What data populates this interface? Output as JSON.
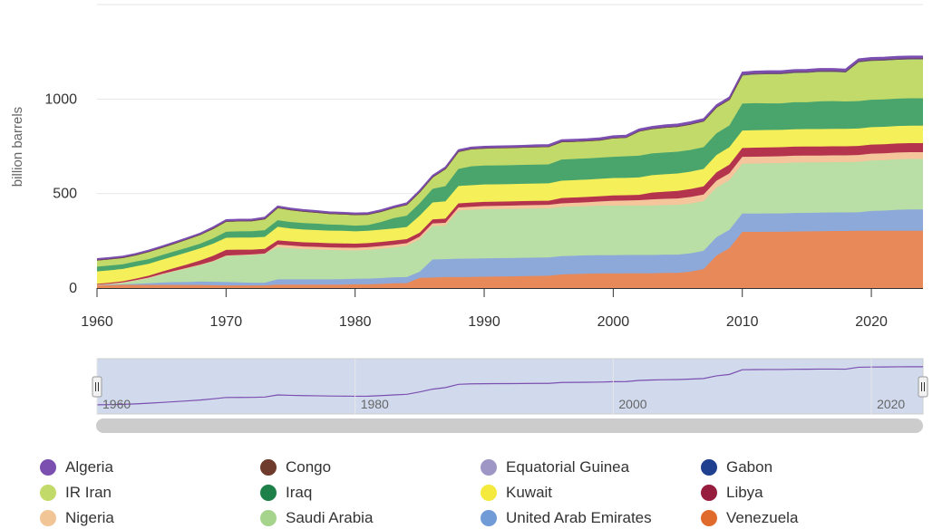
{
  "chart_data": {
    "type": "area",
    "stacked": true,
    "title": "",
    "ylabel": "billion barrels",
    "xlabel": "",
    "ylim": [
      0,
      1500
    ],
    "xlim": [
      1960,
      2024
    ],
    "y_ticks": [
      0,
      500,
      1000
    ],
    "x_ticks": [
      1960,
      1970,
      1980,
      1990,
      2000,
      2010,
      2020
    ],
    "legend_position": "bottom",
    "navigator": {
      "tick_labels": [
        "1960",
        "1980",
        "2000",
        "2020"
      ],
      "selected_range": [
        1960,
        2024
      ]
    },
    "x": [
      1960,
      1961,
      1962,
      1963,
      1964,
      1965,
      1966,
      1967,
      1968,
      1969,
      1970,
      1971,
      1972,
      1973,
      1974,
      1975,
      1976,
      1977,
      1978,
      1979,
      1980,
      1981,
      1982,
      1983,
      1984,
      1985,
      1986,
      1987,
      1988,
      1989,
      1990,
      1991,
      1992,
      1993,
      1994,
      1995,
      1996,
      1997,
      1998,
      1999,
      2000,
      2001,
      2002,
      2003,
      2004,
      2005,
      2006,
      2007,
      2008,
      2009,
      2010,
      2011,
      2012,
      2013,
      2014,
      2015,
      2016,
      2017,
      2018,
      2019,
      2020,
      2021,
      2022,
      2023,
      2024
    ],
    "series": [
      {
        "name": "Venezuela",
        "color": "#e8895a",
        "values": [
          18,
          18,
          18,
          17,
          17,
          17,
          17,
          16,
          16,
          15,
          14,
          14,
          14,
          14,
          18,
          18,
          18,
          18,
          18,
          18,
          20,
          20,
          22,
          25,
          26,
          54,
          56,
          58,
          58,
          59,
          60,
          61,
          62,
          63,
          64,
          65,
          72,
          74,
          76,
          77,
          77,
          78,
          78,
          78,
          80,
          80,
          87,
          100,
          172,
          211,
          297,
          297,
          298,
          298,
          299,
          300,
          301,
          302,
          302,
          303,
          303,
          303,
          303,
          303,
          303
        ]
      },
      {
        "name": "United Arab Emirates",
        "color": "#8ca9d9",
        "values": [
          0,
          0,
          2,
          5,
          8,
          12,
          14,
          16,
          18,
          18,
          18,
          16,
          14,
          14,
          28,
          28,
          28,
          28,
          28,
          29,
          29,
          30,
          31,
          32,
          32,
          32,
          95,
          95,
          97,
          97,
          97,
          97,
          97,
          97,
          97,
          97,
          97,
          97,
          97,
          97,
          97,
          97,
          97,
          97,
          97,
          97,
          97,
          97,
          97,
          97,
          97,
          97,
          97,
          97,
          98,
          98,
          98,
          98,
          98,
          98,
          105,
          107,
          111,
          113,
          113
        ]
      },
      {
        "name": "Saudi Arabia",
        "color": "#b9dea6",
        "values": [
          0,
          5,
          10,
          20,
          30,
          45,
          60,
          75,
          90,
          110,
          140,
          145,
          150,
          155,
          170,
          165,
          160,
          158,
          155,
          153,
          150,
          152,
          155,
          158,
          165,
          172,
          177,
          177,
          255,
          258,
          260,
          260,
          260,
          260,
          260,
          260,
          260,
          261,
          261,
          262,
          262,
          262,
          262,
          262,
          262,
          263,
          263,
          263,
          263,
          263,
          264,
          265,
          265,
          266,
          267,
          267,
          266,
          266,
          266,
          267,
          267,
          267,
          267,
          267,
          267
        ]
      },
      {
        "name": "Nigeria",
        "color": "#f5c69c",
        "values": [
          0,
          0,
          0,
          0,
          0,
          0,
          0,
          0,
          0,
          0,
          0,
          0,
          0,
          0,
          14,
          14,
          14,
          14,
          14,
          14,
          14,
          14,
          14,
          14,
          14,
          14,
          14,
          15,
          16,
          16,
          17,
          17,
          17,
          18,
          18,
          18,
          19,
          19,
          20,
          22,
          26,
          26,
          28,
          32,
          33,
          34,
          35,
          35,
          36,
          36,
          36,
          36,
          36,
          36,
          36,
          36,
          36,
          36,
          36,
          36,
          36,
          36,
          36,
          36,
          36
        ]
      },
      {
        "name": "Libya",
        "color": "#b4344e",
        "values": [
          4,
          5,
          6,
          8,
          10,
          12,
          15,
          18,
          22,
          28,
          30,
          28,
          25,
          24,
          22,
          22,
          22,
          22,
          22,
          22,
          22,
          22,
          22,
          22,
          22,
          21,
          21,
          22,
          22,
          22,
          22,
          22,
          22,
          22,
          22,
          22,
          28,
          28,
          28,
          28,
          28,
          28,
          28,
          36,
          38,
          40,
          42,
          43,
          44,
          46,
          47,
          48,
          48,
          48,
          48,
          48,
          48,
          48,
          48,
          48,
          48,
          48,
          48,
          48,
          48
        ]
      },
      {
        "name": "Kuwait",
        "color": "#f5ef5a",
        "values": [
          66,
          66,
          65,
          65,
          63,
          63,
          63,
          64,
          64,
          64,
          64,
          64,
          64,
          64,
          72,
          68,
          68,
          67,
          67,
          67,
          65,
          65,
          65,
          64,
          64,
          90,
          90,
          92,
          92,
          92,
          92,
          92,
          92,
          92,
          92,
          92,
          92,
          92,
          92,
          92,
          92,
          92,
          92,
          92,
          92,
          92,
          92,
          92,
          92,
          92,
          92,
          92,
          92,
          92,
          92,
          92,
          92,
          92,
          92,
          92,
          92,
          92,
          92,
          92,
          92
        ]
      },
      {
        "name": "Iraq",
        "color": "#4aa56d",
        "values": [
          25,
          25,
          25,
          25,
          25,
          25,
          25,
          25,
          25,
          28,
          32,
          33,
          34,
          35,
          35,
          34,
          34,
          34,
          32,
          31,
          30,
          30,
          40,
          55,
          60,
          65,
          72,
          80,
          90,
          100,
          100,
          100,
          100,
          100,
          100,
          100,
          112,
          112,
          112,
          112,
          112,
          114,
          115,
          115,
          115,
          115,
          115,
          115,
          115,
          115,
          143,
          143,
          141,
          140,
          143,
          142,
          147,
          147,
          145,
          145,
          145,
          145,
          145,
          145,
          145
        ]
      },
      {
        "name": "IR Iran",
        "color": "#c2da6a",
        "values": [
          35,
          35,
          35,
          35,
          40,
          40,
          42,
          45,
          48,
          52,
          55,
          55,
          55,
          60,
          66,
          65,
          62,
          60,
          58,
          58,
          58,
          57,
          56,
          55,
          58,
          60,
          62,
          92,
          92,
          92,
          92,
          93,
          93,
          93,
          94,
          94,
          94,
          93,
          93,
          93,
          100,
          100,
          130,
          131,
          133,
          134,
          136,
          138,
          138,
          138,
          151,
          154,
          157,
          157,
          157,
          158,
          158,
          157,
          156,
          208,
          208,
          208,
          208,
          208,
          208
        ]
      },
      {
        "name": "Gabon",
        "color": "#1f3f8f",
        "values": [
          0.5,
          0.5,
          0.5,
          0.5,
          0.5,
          0.5,
          0.5,
          0.5,
          0.5,
          0.5,
          0.5,
          0.5,
          0.5,
          0.5,
          0.5,
          0.5,
          0.5,
          0.5,
          0.5,
          0.5,
          0.5,
          0.5,
          0.5,
          0.5,
          0.5,
          0.5,
          0.5,
          0.5,
          0.5,
          0.5,
          0.5,
          0.5,
          0.5,
          0.5,
          0.5,
          0.5,
          0.5,
          0.5,
          0.5,
          0.5,
          0.5,
          0.5,
          0.5,
          0.5,
          0.5,
          0.5,
          0.5,
          0.5,
          0.5,
          0.5,
          0.5,
          0.5,
          0.5,
          0.5,
          0.5,
          0.5,
          0.5,
          0.5,
          0.5,
          0.5,
          0.5,
          0.5,
          0.5,
          0.5,
          0.5
        ]
      },
      {
        "name": "Equatorial Guinea",
        "color": "#9e96c4",
        "values": [
          0,
          0,
          0,
          0,
          0,
          0,
          0,
          0,
          0,
          0,
          0,
          0,
          0,
          0,
          0,
          0,
          0,
          0,
          0,
          0,
          0,
          0,
          0,
          0,
          0,
          0,
          0,
          0,
          0,
          0,
          0,
          0,
          0,
          0,
          0,
          0,
          0,
          0,
          0,
          0,
          0,
          0,
          0,
          0,
          0,
          0,
          0,
          0,
          0,
          0,
          1,
          1,
          1,
          1,
          1,
          1,
          1,
          1,
          1,
          1,
          1,
          1,
          1,
          1,
          1
        ]
      },
      {
        "name": "Congo",
        "color": "#6e3b2c",
        "values": [
          0,
          0,
          0,
          0,
          0,
          0,
          0,
          0,
          0,
          0,
          0,
          0,
          0,
          0,
          0,
          0,
          0,
          0,
          0,
          0,
          0,
          0,
          0,
          0,
          0,
          0,
          0,
          0,
          0,
          0,
          0,
          0,
          0,
          0,
          0,
          0,
          0,
          0,
          0,
          0,
          0,
          0,
          0,
          0,
          0,
          0,
          0,
          0,
          0,
          0,
          1.5,
          1.5,
          1.5,
          1.5,
          1.5,
          1.5,
          1.5,
          1.5,
          1.5,
          1.5,
          1.5,
          1.5,
          1.5,
          1.5,
          1.5
        ]
      },
      {
        "name": "Algeria",
        "color": "#7b4fb0",
        "values": [
          7,
          7,
          7,
          7,
          7,
          7,
          7,
          7,
          7,
          8,
          8,
          8,
          8,
          8,
          8,
          8,
          8,
          8,
          8,
          8,
          8,
          8,
          8,
          8,
          9,
          9,
          9,
          9,
          9,
          9,
          9,
          9,
          9,
          9,
          10,
          10,
          10,
          10,
          10,
          11,
          11,
          11,
          11,
          11,
          12,
          12,
          12,
          12,
          12,
          12,
          12,
          12,
          12,
          12,
          12,
          12,
          12,
          12,
          12,
          12,
          12,
          12,
          12,
          12,
          12
        ]
      }
    ],
    "legend": [
      {
        "name": "Algeria",
        "color": "#7b4fb0"
      },
      {
        "name": "Congo",
        "color": "#6e3b2c"
      },
      {
        "name": "Equatorial Guinea",
        "color": "#9e96c4"
      },
      {
        "name": "Gabon",
        "color": "#1f3f8f"
      },
      {
        "name": "IR Iran",
        "color": "#c2da6a"
      },
      {
        "name": "Iraq",
        "color": "#1c8048"
      },
      {
        "name": "Kuwait",
        "color": "#f3ea3d"
      },
      {
        "name": "Libya",
        "color": "#971d3e"
      },
      {
        "name": "Nigeria",
        "color": "#f2c596"
      },
      {
        "name": "Saudi Arabia",
        "color": "#a7d48d"
      },
      {
        "name": "United Arab Emirates",
        "color": "#719bd6"
      },
      {
        "name": "Venezuela",
        "color": "#e06a2c"
      }
    ]
  }
}
